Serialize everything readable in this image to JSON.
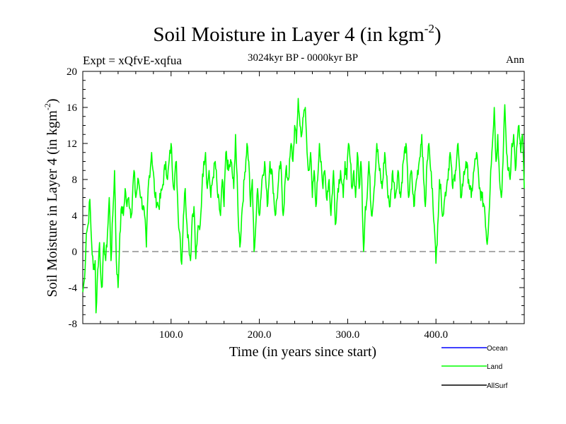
{
  "chart_data": {
    "type": "line",
    "title": "Soil Moisture in Layer 4 (in kgm",
    "title_sup": "-2",
    "title_close": ")",
    "subtitle": "3024kyr BP - 0000kyr BP",
    "expt_label": "Expt = xQfvE-xqfua",
    "season_label": "Ann",
    "xlabel": "Time (in years since start)",
    "ylabel": "Soil Moisture in Layer 4 (in kgm",
    "ylabel_sup": "-2",
    "ylabel_close": ")",
    "xlim": [
      0,
      500
    ],
    "ylim": [
      -8,
      20
    ],
    "x_ticks": [
      100,
      200,
      300,
      400
    ],
    "x_tick_labels": [
      "100.0",
      "200.0",
      "300.0",
      "400.0"
    ],
    "y_ticks": [
      -8,
      -4,
      0,
      4,
      8,
      12,
      16,
      20
    ],
    "y_tick_labels": [
      "-8",
      "-4",
      "0",
      "4",
      "8",
      "12",
      "16",
      "20"
    ],
    "zero_line": 0,
    "legend": [
      {
        "name": "Ocean",
        "color": "#0000ff"
      },
      {
        "name": "Land",
        "color": "#00ff00"
      },
      {
        "name": "AllSurf",
        "color": "#000000"
      }
    ],
    "series": [
      {
        "name": "Land",
        "color": "#00ff00",
        "keypoints": [
          [
            0,
            -4.5
          ],
          [
            2,
            -3
          ],
          [
            4,
            2
          ],
          [
            6,
            3
          ],
          [
            8,
            5.8
          ],
          [
            10,
            1
          ],
          [
            12,
            -2
          ],
          [
            14,
            -1
          ],
          [
            15,
            -6.8
          ],
          [
            17,
            -2
          ],
          [
            19,
            1
          ],
          [
            20,
            -2
          ],
          [
            22,
            -3.9
          ],
          [
            24,
            1
          ],
          [
            26,
            -1
          ],
          [
            28,
            2
          ],
          [
            30,
            6
          ],
          [
            32,
            -1
          ],
          [
            34,
            4
          ],
          [
            36,
            9
          ],
          [
            38,
            -1
          ],
          [
            40,
            -4
          ],
          [
            42,
            2
          ],
          [
            44,
            5
          ],
          [
            46,
            4
          ],
          [
            48,
            7
          ],
          [
            50,
            5
          ],
          [
            52,
            6
          ],
          [
            55,
            4
          ],
          [
            58,
            9
          ],
          [
            60,
            6
          ],
          [
            63,
            8
          ],
          [
            66,
            6
          ],
          [
            70,
            4
          ],
          [
            72,
            0.5
          ],
          [
            74,
            7
          ],
          [
            78,
            11
          ],
          [
            82,
            6
          ],
          [
            86,
            5
          ],
          [
            90,
            7
          ],
          [
            94,
            10
          ],
          [
            96,
            8
          ],
          [
            100,
            12
          ],
          [
            103,
            7
          ],
          [
            106,
            10
          ],
          [
            108,
            4
          ],
          [
            110,
            2
          ],
          [
            112,
            -1.4
          ],
          [
            114,
            4
          ],
          [
            116,
            7
          ],
          [
            118,
            3
          ],
          [
            120,
            1
          ],
          [
            122,
            -1
          ],
          [
            124,
            4
          ],
          [
            126,
            5
          ],
          [
            128,
            -0.8
          ],
          [
            130,
            2
          ],
          [
            133,
            3
          ],
          [
            135,
            7
          ],
          [
            137,
            10
          ],
          [
            139,
            11
          ],
          [
            141,
            7
          ],
          [
            143,
            9
          ],
          [
            145,
            6
          ],
          [
            147,
            8
          ],
          [
            150,
            10
          ],
          [
            153,
            6
          ],
          [
            156,
            4
          ],
          [
            158,
            8
          ],
          [
            160,
            5
          ],
          [
            162,
            11
          ],
          [
            165,
            9
          ],
          [
            168,
            10
          ],
          [
            171,
            7
          ],
          [
            173,
            13
          ],
          [
            176,
            4
          ],
          [
            178,
            0.5
          ],
          [
            180,
            4
          ],
          [
            183,
            8
          ],
          [
            186,
            12
          ],
          [
            188,
            10
          ],
          [
            190,
            5
          ],
          [
            192,
            8
          ],
          [
            194,
            0
          ],
          [
            196,
            3
          ],
          [
            198,
            7
          ],
          [
            200,
            4
          ],
          [
            203,
            8
          ],
          [
            206,
            10
          ],
          [
            209,
            5
          ],
          [
            212,
            10
          ],
          [
            215,
            8
          ],
          [
            218,
            4
          ],
          [
            221,
            7
          ],
          [
            224,
            10
          ],
          [
            227,
            4
          ],
          [
            230,
            9
          ],
          [
            233,
            8
          ],
          [
            236,
            12
          ],
          [
            238,
            10
          ],
          [
            240,
            14
          ],
          [
            242,
            12
          ],
          [
            244,
            17
          ],
          [
            246,
            14
          ],
          [
            248,
            13
          ],
          [
            250,
            15
          ],
          [
            252,
            16
          ],
          [
            254,
            11
          ],
          [
            256,
            9
          ],
          [
            258,
            11
          ],
          [
            260,
            6
          ],
          [
            262,
            9
          ],
          [
            264,
            5
          ],
          [
            266,
            8
          ],
          [
            268,
            12
          ],
          [
            270,
            10
          ],
          [
            272,
            7
          ],
          [
            274,
            9
          ],
          [
            276,
            6
          ],
          [
            279,
            8
          ],
          [
            281,
            4
          ],
          [
            284,
            9
          ],
          [
            286,
            3
          ],
          [
            289,
            7
          ],
          [
            292,
            9
          ],
          [
            295,
            6
          ],
          [
            297,
            10
          ],
          [
            299,
            8
          ],
          [
            301,
            12
          ],
          [
            303,
            10
          ],
          [
            305,
            7
          ],
          [
            307,
            9
          ],
          [
            309,
            6
          ],
          [
            311,
            11
          ],
          [
            313,
            7
          ],
          [
            315,
            10
          ],
          [
            316,
            8
          ],
          [
            318,
            0
          ],
          [
            320,
            5
          ],
          [
            322,
            6
          ],
          [
            324,
            10
          ],
          [
            327,
            4
          ],
          [
            330,
            7
          ],
          [
            333,
            12
          ],
          [
            336,
            9
          ],
          [
            339,
            7
          ],
          [
            342,
            11
          ],
          [
            345,
            7
          ],
          [
            348,
            5
          ],
          [
            351,
            9
          ],
          [
            354,
            6
          ],
          [
            357,
            9
          ],
          [
            360,
            6
          ],
          [
            363,
            10
          ],
          [
            366,
            12
          ],
          [
            369,
            6
          ],
          [
            372,
            9
          ],
          [
            375,
            5
          ],
          [
            378,
            8
          ],
          [
            381,
            10
          ],
          [
            384,
            13
          ],
          [
            386,
            8
          ],
          [
            388,
            5
          ],
          [
            390,
            10
          ],
          [
            392,
            12
          ],
          [
            394,
            9
          ],
          [
            396,
            7
          ],
          [
            398,
            3
          ],
          [
            400,
            -1.3
          ],
          [
            402,
            3
          ],
          [
            404,
            8
          ],
          [
            406,
            6
          ],
          [
            408,
            4
          ],
          [
            410,
            6
          ],
          [
            413,
            8
          ],
          [
            416,
            11
          ],
          [
            419,
            7
          ],
          [
            422,
            9
          ],
          [
            425,
            12
          ],
          [
            428,
            6
          ],
          [
            431,
            8
          ],
          [
            434,
            10
          ],
          [
            437,
            8
          ],
          [
            440,
            6
          ],
          [
            443,
            9
          ],
          [
            446,
            11
          ],
          [
            449,
            7
          ],
          [
            452,
            6
          ],
          [
            455,
            5
          ],
          [
            458,
            0.8
          ],
          [
            460,
            4
          ],
          [
            462,
            9
          ],
          [
            464,
            12
          ],
          [
            466,
            16
          ],
          [
            468,
            10
          ],
          [
            470,
            13
          ],
          [
            472,
            8
          ],
          [
            474,
            6
          ],
          [
            476,
            10
          ],
          [
            478,
            16.3
          ],
          [
            480,
            11
          ],
          [
            482,
            9
          ],
          [
            484,
            8
          ],
          [
            486,
            12
          ],
          [
            488,
            13
          ],
          [
            490,
            9
          ],
          [
            492,
            12
          ],
          [
            494,
            14
          ],
          [
            496,
            11
          ],
          [
            498,
            13
          ],
          [
            500,
            7
          ]
        ]
      }
    ]
  }
}
